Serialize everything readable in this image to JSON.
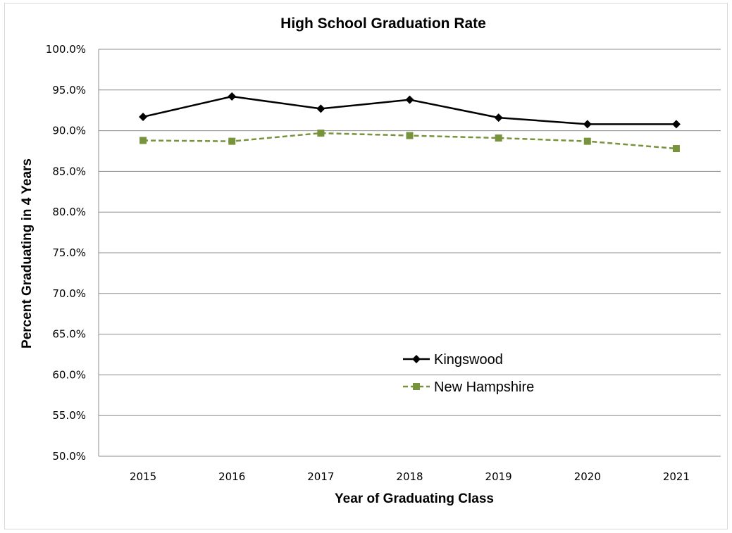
{
  "chart_data": {
    "type": "line",
    "title": "High School Graduation Rate",
    "xlabel": "Year of Graduating Class",
    "ylabel": "Percent Graduating in 4 Years",
    "categories": [
      "2015",
      "2016",
      "2017",
      "2018",
      "2019",
      "2020",
      "2021"
    ],
    "ylim": [
      50,
      100
    ],
    "y_ticks": [
      50,
      55,
      60,
      65,
      70,
      75,
      80,
      85,
      90,
      95,
      100
    ],
    "y_tick_labels": [
      "50.0%",
      "55.0%",
      "60.0%",
      "65.0%",
      "70.0%",
      "75.0%",
      "80.0%",
      "85.0%",
      "90.0%",
      "95.0%",
      "100.0%"
    ],
    "grid": true,
    "legend_position": "lower-center",
    "series": [
      {
        "name": "Kingswood",
        "values": [
          91.7,
          94.2,
          92.7,
          93.8,
          91.6,
          90.8,
          90.8
        ],
        "color": "#000000",
        "marker": "diamond",
        "line_style": "solid"
      },
      {
        "name": "New Hampshire",
        "values": [
          88.8,
          88.7,
          89.7,
          89.4,
          89.1,
          88.7,
          87.8
        ],
        "color": "#77933c",
        "marker": "square",
        "line_style": "dashed"
      }
    ]
  }
}
